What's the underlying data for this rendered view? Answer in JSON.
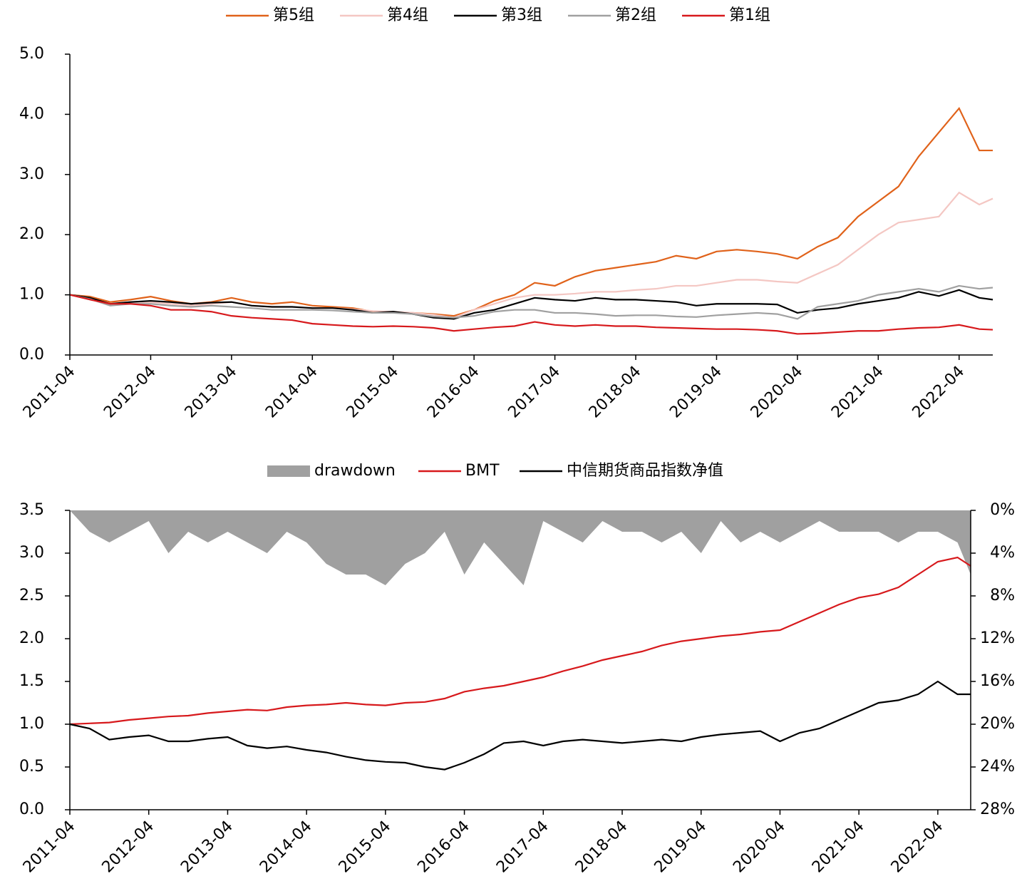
{
  "chart_data": [
    {
      "type": "line",
      "x": [
        "2011-04",
        "2011-07",
        "2011-10",
        "2012-01",
        "2012-04",
        "2012-07",
        "2012-10",
        "2013-01",
        "2013-04",
        "2013-07",
        "2013-10",
        "2014-01",
        "2014-04",
        "2014-07",
        "2014-10",
        "2015-01",
        "2015-04",
        "2015-07",
        "2015-10",
        "2016-01",
        "2016-04",
        "2016-07",
        "2016-10",
        "2017-01",
        "2017-04",
        "2017-07",
        "2017-10",
        "2018-01",
        "2018-04",
        "2018-07",
        "2018-10",
        "2019-01",
        "2019-04",
        "2019-07",
        "2019-10",
        "2020-01",
        "2020-04",
        "2020-07",
        "2020-10",
        "2021-01",
        "2021-04",
        "2021-07",
        "2021-10",
        "2022-01",
        "2022-04",
        "2022-07",
        "2022-09"
      ],
      "xlim": [
        "2011-04",
        "2022-09"
      ],
      "xticks": [
        "2011-04",
        "2012-04",
        "2013-04",
        "2014-04",
        "2015-04",
        "2016-04",
        "2017-04",
        "2018-04",
        "2019-04",
        "2020-04",
        "2021-04",
        "2022-04"
      ],
      "ylim": [
        0,
        5
      ],
      "yticks": [
        {
          "value": 0,
          "label": "0.0"
        },
        {
          "value": 1,
          "label": "1.0"
        },
        {
          "value": 2,
          "label": "2.0"
        },
        {
          "value": 3,
          "label": "3.0"
        },
        {
          "value": 4,
          "label": "4.0"
        },
        {
          "value": 5,
          "label": "5.0"
        }
      ],
      "legend": "top",
      "series": [
        {
          "name": "第5组",
          "color": "#e0621a",
          "values": [
            1.0,
            0.97,
            0.88,
            0.92,
            0.97,
            0.9,
            0.85,
            0.88,
            0.95,
            0.88,
            0.85,
            0.88,
            0.82,
            0.8,
            0.78,
            0.72,
            0.7,
            0.7,
            0.68,
            0.65,
            0.75,
            0.9,
            1.0,
            1.2,
            1.15,
            1.3,
            1.4,
            1.45,
            1.5,
            1.55,
            1.65,
            1.6,
            1.72,
            1.75,
            1.72,
            1.68,
            1.6,
            1.8,
            1.95,
            2.3,
            2.55,
            2.8,
            3.3,
            3.7,
            4.1,
            3.4,
            3.4
          ]
        },
        {
          "name": "第4组",
          "color": "#f4c7c3",
          "values": [
            1.0,
            0.95,
            0.85,
            0.88,
            0.88,
            0.85,
            0.82,
            0.85,
            0.88,
            0.82,
            0.8,
            0.8,
            0.78,
            0.78,
            0.76,
            0.73,
            0.72,
            0.7,
            0.67,
            0.62,
            0.75,
            0.85,
            0.95,
            1.0,
            1.0,
            1.02,
            1.05,
            1.05,
            1.08,
            1.1,
            1.15,
            1.15,
            1.2,
            1.25,
            1.25,
            1.22,
            1.2,
            1.35,
            1.5,
            1.75,
            2.0,
            2.2,
            2.25,
            2.3,
            2.7,
            2.5,
            2.6
          ]
        },
        {
          "name": "第3组",
          "color": "#000000",
          "values": [
            1.0,
            0.95,
            0.85,
            0.88,
            0.9,
            0.88,
            0.85,
            0.87,
            0.88,
            0.82,
            0.8,
            0.8,
            0.78,
            0.78,
            0.75,
            0.7,
            0.72,
            0.68,
            0.62,
            0.6,
            0.7,
            0.75,
            0.85,
            0.95,
            0.92,
            0.9,
            0.95,
            0.92,
            0.92,
            0.9,
            0.88,
            0.82,
            0.85,
            0.85,
            0.85,
            0.84,
            0.7,
            0.75,
            0.78,
            0.85,
            0.9,
            0.95,
            1.05,
            0.98,
            1.08,
            0.95,
            0.92
          ]
        },
        {
          "name": "第2组",
          "color": "#a0a0a0",
          "values": [
            1.0,
            0.93,
            0.82,
            0.85,
            0.85,
            0.82,
            0.8,
            0.82,
            0.8,
            0.78,
            0.75,
            0.75,
            0.75,
            0.74,
            0.72,
            0.7,
            0.7,
            0.68,
            0.64,
            0.62,
            0.65,
            0.72,
            0.75,
            0.75,
            0.7,
            0.7,
            0.68,
            0.65,
            0.66,
            0.66,
            0.64,
            0.63,
            0.66,
            0.68,
            0.7,
            0.68,
            0.6,
            0.8,
            0.85,
            0.9,
            1.0,
            1.05,
            1.1,
            1.05,
            1.15,
            1.1,
            1.12
          ]
        },
        {
          "name": "第1组",
          "color": "#d7191c",
          "values": [
            1.0,
            0.92,
            0.85,
            0.85,
            0.82,
            0.75,
            0.75,
            0.72,
            0.65,
            0.62,
            0.6,
            0.58,
            0.52,
            0.5,
            0.48,
            0.47,
            0.48,
            0.47,
            0.45,
            0.4,
            0.43,
            0.46,
            0.48,
            0.55,
            0.5,
            0.48,
            0.5,
            0.48,
            0.48,
            0.46,
            0.45,
            0.44,
            0.43,
            0.43,
            0.42,
            0.4,
            0.35,
            0.36,
            0.38,
            0.4,
            0.4,
            0.43,
            0.45,
            0.46,
            0.5,
            0.43,
            0.42
          ]
        }
      ]
    },
    {
      "type": "line",
      "x": [
        "2011-04",
        "2011-07",
        "2011-10",
        "2012-01",
        "2012-04",
        "2012-07",
        "2012-10",
        "2013-01",
        "2013-04",
        "2013-07",
        "2013-10",
        "2014-01",
        "2014-04",
        "2014-07",
        "2014-10",
        "2015-01",
        "2015-04",
        "2015-07",
        "2015-10",
        "2016-01",
        "2016-04",
        "2016-07",
        "2016-10",
        "2017-01",
        "2017-04",
        "2017-07",
        "2017-10",
        "2018-01",
        "2018-04",
        "2018-07",
        "2018-10",
        "2019-01",
        "2019-04",
        "2019-07",
        "2019-10",
        "2020-01",
        "2020-04",
        "2020-07",
        "2020-10",
        "2021-01",
        "2021-04",
        "2021-07",
        "2021-10",
        "2022-01",
        "2022-04",
        "2022-07",
        "2022-09"
      ],
      "xlim": [
        "2011-04",
        "2022-09"
      ],
      "xticks": [
        "2011-04",
        "2012-04",
        "2013-04",
        "2014-04",
        "2015-04",
        "2016-04",
        "2017-04",
        "2018-04",
        "2019-04",
        "2020-04",
        "2021-04",
        "2022-04"
      ],
      "ylim": [
        0,
        3.5
      ],
      "yticks": [
        {
          "value": 0,
          "label": "0.0"
        },
        {
          "value": 0.5,
          "label": "0.5"
        },
        {
          "value": 1,
          "label": "1.0"
        },
        {
          "value": 1.5,
          "label": "1.5"
        },
        {
          "value": 2,
          "label": "2.0"
        },
        {
          "value": 2.5,
          "label": "2.5"
        },
        {
          "value": 3,
          "label": "3.0"
        },
        {
          "value": 3.5,
          "label": "3.5"
        }
      ],
      "y2lim": [
        28,
        0
      ],
      "y2ticks": [
        {
          "value": 0,
          "label": "0%"
        },
        {
          "value": 4,
          "label": "4%"
        },
        {
          "value": 8,
          "label": "8%"
        },
        {
          "value": 12,
          "label": "12%"
        },
        {
          "value": 16,
          "label": "16%"
        },
        {
          "value": 20,
          "label": "20%"
        },
        {
          "value": 24,
          "label": "24%"
        },
        {
          "value": 28,
          "label": "28%"
        }
      ],
      "legend": "top",
      "series": [
        {
          "name": "drawdown",
          "type": "area",
          "axis": "y2",
          "color": "#a0a0a0",
          "values": [
            0,
            2,
            3,
            2,
            1,
            4,
            2,
            3,
            2,
            3,
            4,
            2,
            3,
            5,
            6,
            6,
            7,
            5,
            4,
            2,
            6,
            3,
            5,
            7,
            1,
            2,
            3,
            1,
            2,
            2,
            3,
            2,
            4,
            1,
            3,
            2,
            3,
            2,
            1,
            2,
            2,
            2,
            3,
            2,
            2,
            3,
            6
          ]
        },
        {
          "name": "BMT",
          "color": "#d7191c",
          "values": [
            1.0,
            1.01,
            1.02,
            1.05,
            1.07,
            1.09,
            1.1,
            1.13,
            1.15,
            1.17,
            1.16,
            1.2,
            1.22,
            1.23,
            1.25,
            1.23,
            1.22,
            1.25,
            1.26,
            1.3,
            1.38,
            1.42,
            1.45,
            1.5,
            1.55,
            1.62,
            1.68,
            1.75,
            1.8,
            1.85,
            1.92,
            1.97,
            2.0,
            2.03,
            2.05,
            2.08,
            2.1,
            2.2,
            2.3,
            2.4,
            2.48,
            2.52,
            2.6,
            2.75,
            2.9,
            2.95,
            2.85
          ]
        },
        {
          "name": "中信期货商品指数净值",
          "color": "#000000",
          "values": [
            1.0,
            0.95,
            0.82,
            0.85,
            0.87,
            0.8,
            0.8,
            0.83,
            0.85,
            0.75,
            0.72,
            0.74,
            0.7,
            0.67,
            0.62,
            0.58,
            0.56,
            0.55,
            0.5,
            0.47,
            0.55,
            0.65,
            0.78,
            0.8,
            0.75,
            0.8,
            0.82,
            0.8,
            0.78,
            0.8,
            0.82,
            0.8,
            0.85,
            0.88,
            0.9,
            0.92,
            0.8,
            0.9,
            0.95,
            1.05,
            1.15,
            1.25,
            1.28,
            1.35,
            1.5,
            1.35,
            1.35
          ]
        }
      ]
    }
  ]
}
